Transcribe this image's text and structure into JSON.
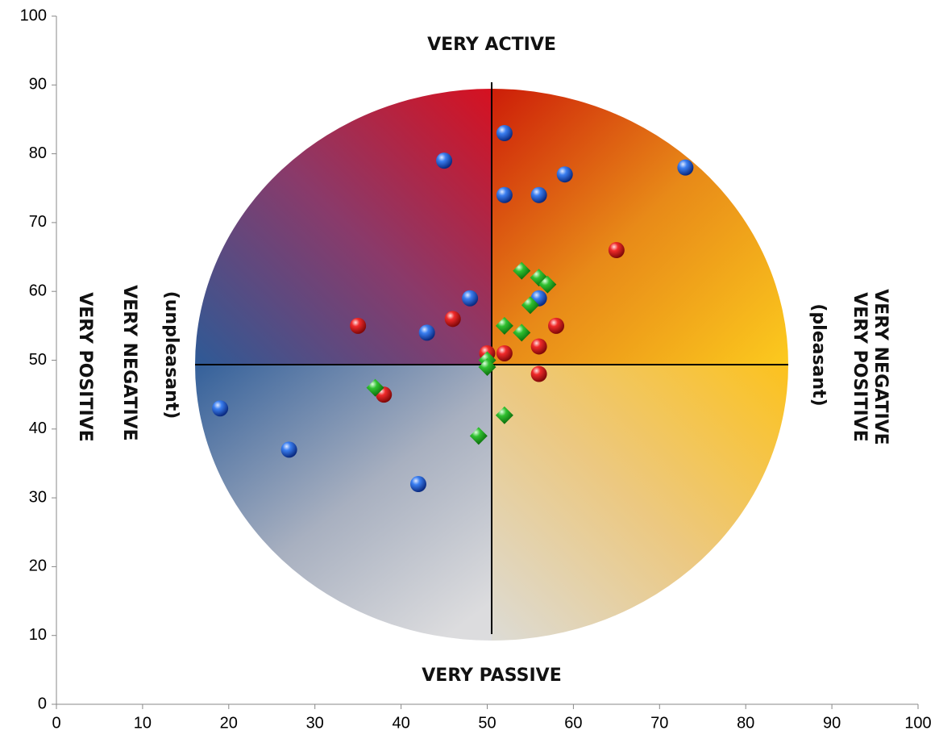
{
  "chart_data": {
    "type": "scatter",
    "xlim": [
      0,
      100
    ],
    "xticks": [
      0,
      10,
      20,
      30,
      40,
      50,
      60,
      70,
      80,
      90,
      100
    ],
    "ylim": [
      0,
      100
    ],
    "yticks": [
      0,
      10,
      20,
      30,
      40,
      50,
      60,
      70,
      80,
      90,
      100
    ],
    "grid": false,
    "annotations": [
      "VERY ACTIVE",
      "VERY PASSIVE",
      "VERY POSITIVE",
      "VERY NEGATIVE",
      "(unpleasant)",
      "VERY NEGATIVE",
      "VERY POSITIVE",
      "(pleasant)"
    ],
    "series": [
      {
        "color": "#1f5fd6",
        "marker": "circle",
        "x": [
          52,
          45,
          52,
          56,
          59,
          73,
          48,
          56,
          43,
          19,
          27,
          42
        ],
        "values": [
          83,
          79,
          74,
          74,
          77,
          78,
          59,
          59,
          54,
          43,
          37,
          32
        ]
      },
      {
        "color": "#e01818",
        "marker": "circle",
        "x": [
          65,
          46,
          35,
          58,
          50,
          52,
          56,
          56,
          38
        ],
        "values": [
          66,
          56,
          55,
          55,
          51,
          51,
          52,
          48,
          45
        ]
      },
      {
        "color": "#20b020",
        "marker": "diamond",
        "x": [
          54,
          56,
          57,
          55,
          52,
          54,
          50,
          50,
          37,
          52,
          49
        ],
        "values": [
          63,
          62,
          61,
          58,
          55,
          54,
          50,
          49,
          46,
          42,
          39
        ]
      }
    ]
  }
}
